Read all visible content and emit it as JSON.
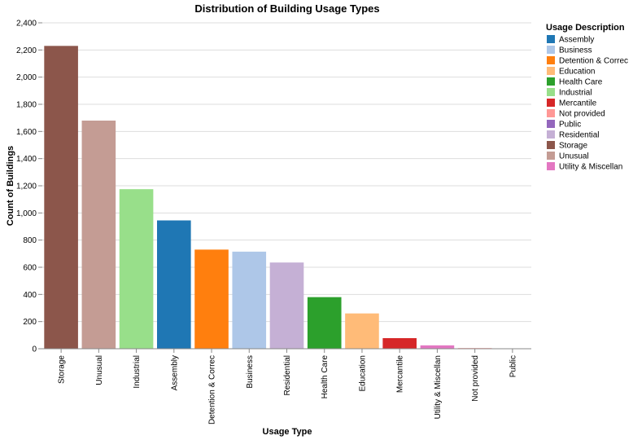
{
  "chart_data": {
    "type": "bar",
    "title": "Distribution of Building Usage Types",
    "xlabel": "Usage Type",
    "ylabel": "Count of Buildings",
    "ylim": [
      0,
      2400
    ],
    "yticks": [
      "0",
      "200",
      "400",
      "600",
      "800",
      "1,000",
      "1,200",
      "1,400",
      "1,600",
      "1,800",
      "2,000",
      "2,200",
      "2,400"
    ],
    "categories": [
      "Storage",
      "Unusual",
      "Industrial",
      "Assembly",
      "Detention & Correc",
      "Business",
      "Residential",
      "Health Care",
      "Education",
      "Mercantile",
      "Utility & Miscellan",
      "Not provided",
      "Public"
    ],
    "values": [
      2230,
      1680,
      1175,
      945,
      730,
      715,
      635,
      380,
      260,
      78,
      25,
      5,
      2
    ],
    "grid": true,
    "legend": {
      "title": "Usage Description",
      "placement": "right",
      "entries": [
        {
          "label": "Assembly",
          "color": "#1f77b4"
        },
        {
          "label": "Business",
          "color": "#aec7e8"
        },
        {
          "label": "Detention & Correc",
          "color": "#ff7f0e"
        },
        {
          "label": "Education",
          "color": "#ffbb78"
        },
        {
          "label": "Health Care",
          "color": "#2ca02c"
        },
        {
          "label": "Industrial",
          "color": "#98df8a"
        },
        {
          "label": "Mercantile",
          "color": "#d62728"
        },
        {
          "label": "Not provided",
          "color": "#ff9896"
        },
        {
          "label": "Public",
          "color": "#9467bd"
        },
        {
          "label": "Residential",
          "color": "#c5b0d5"
        },
        {
          "label": "Storage",
          "color": "#8c564b"
        },
        {
          "label": "Unusual",
          "color": "#c49c94"
        },
        {
          "label": "Utility & Miscellan",
          "color": "#e377c2"
        }
      ]
    }
  }
}
